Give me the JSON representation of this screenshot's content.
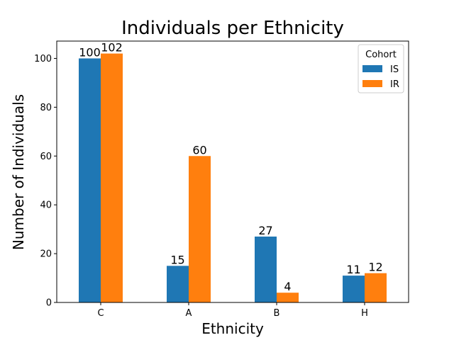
{
  "chart_data": {
    "type": "bar",
    "title": "Individuals per Ethnicity",
    "xlabel": "Ethnicity",
    "ylabel": "Number of Individuals",
    "categories": [
      "C",
      "A",
      "B",
      "H"
    ],
    "series": [
      {
        "name": "IS",
        "values": [
          100,
          15,
          27,
          11
        ],
        "color": "#1f77b4"
      },
      {
        "name": "IR",
        "values": [
          102,
          60,
          4,
          12
        ],
        "color": "#ff7f0e"
      }
    ],
    "ylim": [
      0,
      107.1
    ],
    "yticks": [
      0,
      20,
      40,
      60,
      80,
      100
    ],
    "grid": false,
    "legend": {
      "title": "Cohort",
      "placement": "top-right"
    }
  }
}
